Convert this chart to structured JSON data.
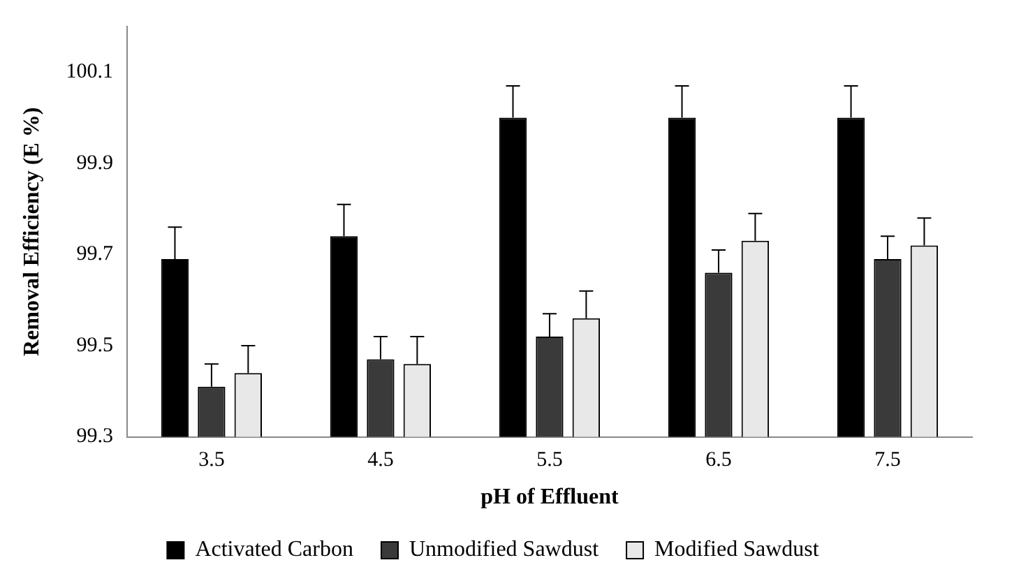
{
  "chart_data": {
    "type": "bar",
    "xlabel": "pH of Effluent",
    "ylabel": "Removal Efficiency (E %)",
    "categories": [
      "3.5",
      "4.5",
      "5.5",
      "6.5",
      "7.5"
    ],
    "series": [
      {
        "name": "Activated Carbon",
        "color": "#000000",
        "values": [
          99.69,
          99.74,
          100.0,
          100.0,
          100.0
        ],
        "errors": [
          [
            99.69,
            99.76
          ],
          [
            99.74,
            99.81
          ],
          [
            100.0,
            100.07
          ],
          [
            100.0,
            100.07
          ],
          [
            100.0,
            100.07
          ]
        ]
      },
      {
        "name": "Unmodified Sawdust",
        "color": "#3a3a3a",
        "values": [
          99.41,
          99.47,
          99.52,
          99.66,
          99.69
        ],
        "errors": [
          [
            99.41,
            99.46
          ],
          [
            99.47,
            99.52
          ],
          [
            99.52,
            99.57
          ],
          [
            99.66,
            99.71
          ],
          [
            99.69,
            99.74
          ]
        ]
      },
      {
        "name": "Modified Sawdust",
        "color": "#e8e8e8",
        "values": [
          99.44,
          99.46,
          99.56,
          99.73,
          99.72
        ],
        "errors": [
          [
            99.44,
            99.5
          ],
          [
            99.46,
            99.52
          ],
          [
            99.56,
            99.62
          ],
          [
            99.73,
            99.79
          ],
          [
            99.72,
            99.78
          ]
        ]
      }
    ],
    "ylim": [
      99.3,
      100.2
    ],
    "yticks": [
      99.3,
      99.5,
      99.7,
      99.9,
      100.1
    ],
    "grid": false,
    "legend": "bottom"
  }
}
